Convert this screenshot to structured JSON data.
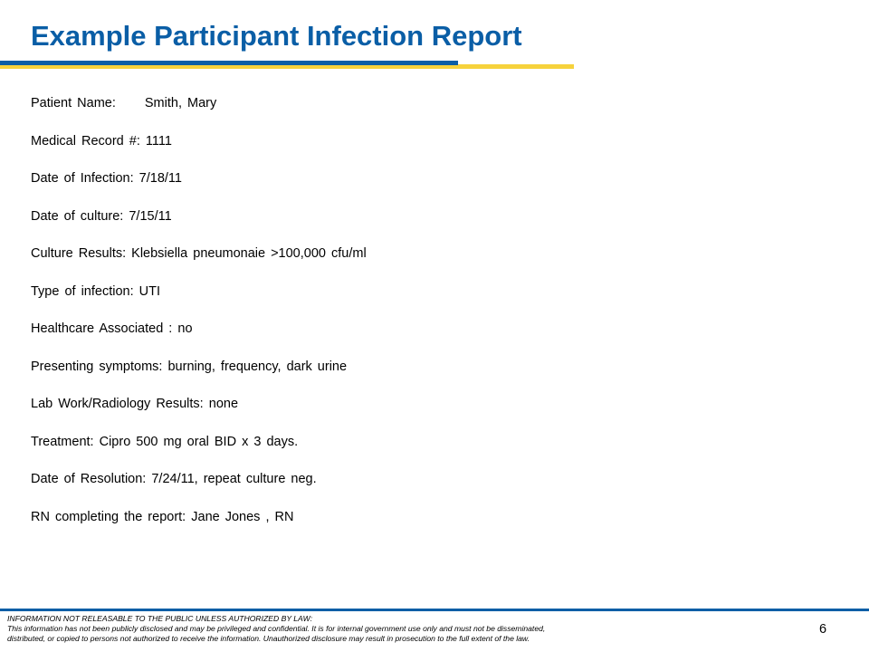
{
  "title": "Example Participant Infection Report",
  "fields": [
    {
      "label": "Patient Name:",
      "value": "Smith, Mary"
    },
    {
      "label": "Medical Record #:",
      "value": "1111"
    },
    {
      "label": "Date of Infection:",
      "value": "7/18/11"
    },
    {
      "label": "Date of culture:",
      "value": "7/15/11"
    },
    {
      "label": "Culture Results:",
      "value": "Klebsiella pneumonaie  >100,000 cfu/ml"
    },
    {
      "label": "Type of infection:",
      "value": "UTI"
    },
    {
      "label": "Healthcare Associated :",
      "value": "no"
    },
    {
      "label": "Presenting symptoms:",
      "value": "burning, frequency, dark urine"
    },
    {
      "label": "Lab Work/Radiology Results:",
      "value": "none"
    },
    {
      "label": "Treatment:",
      "value": "Cipro 500 mg oral BID x 3 days."
    },
    {
      "label": "Date of Resolution:",
      "value": "7/24/11, repeat culture neg."
    },
    {
      "label": "RN completing the report:",
      "value": "Jane Jones , RN"
    }
  ],
  "footer": {
    "line1": "INFORMATION NOT RELEASABLE TO THE PUBLIC UNLESS AUTHORIZED BY LAW:",
    "line2": "This information has not been publicly disclosed and may be privileged and confidential.  It is for internal government use only and must not be disseminated,",
    "line3": "distributed, or copied to persons not authorized to receive the information.  Unauthorized disclosure may result in prosecution to the full extent of the law."
  },
  "page_number": "6",
  "colors": {
    "title": "#0a5ea6",
    "rule_blue": "#0a5ea6",
    "rule_yellow": "#f6d23c"
  }
}
